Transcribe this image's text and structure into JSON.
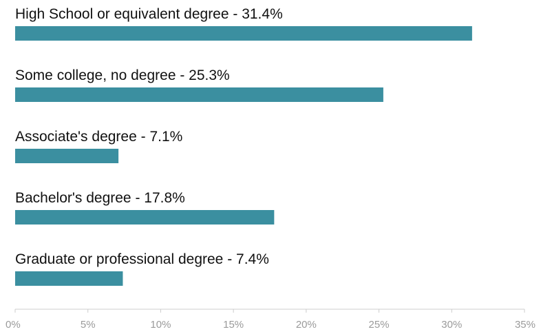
{
  "chart_data": {
    "type": "bar",
    "orientation": "horizontal",
    "categories": [
      "High School or equivalent degree",
      "Some college, no degree",
      "Associate's degree",
      "Bachelor's degree",
      "Graduate or professional degree"
    ],
    "values": [
      31.4,
      25.3,
      7.1,
      17.8,
      7.4
    ],
    "bar_labels": [
      "High School or equivalent degree - 31.4%",
      "Some college, no degree - 25.3%",
      "Associate's degree - 7.1%",
      "Bachelor's degree - 17.8%",
      "Graduate or professional degree - 7.4%"
    ],
    "xlim": [
      0,
      35
    ],
    "x_ticks": [
      0,
      5,
      10,
      15,
      20,
      25,
      30,
      35
    ],
    "x_tick_labels": [
      "0%",
      "5%",
      "10%",
      "15%",
      "20%",
      "25%",
      "30%",
      "35%"
    ],
    "grid": false,
    "colors": {
      "bar": "#3b8fa0",
      "axis": "#cccccc",
      "label": "#111111",
      "tick": "#9a9a9a"
    }
  }
}
